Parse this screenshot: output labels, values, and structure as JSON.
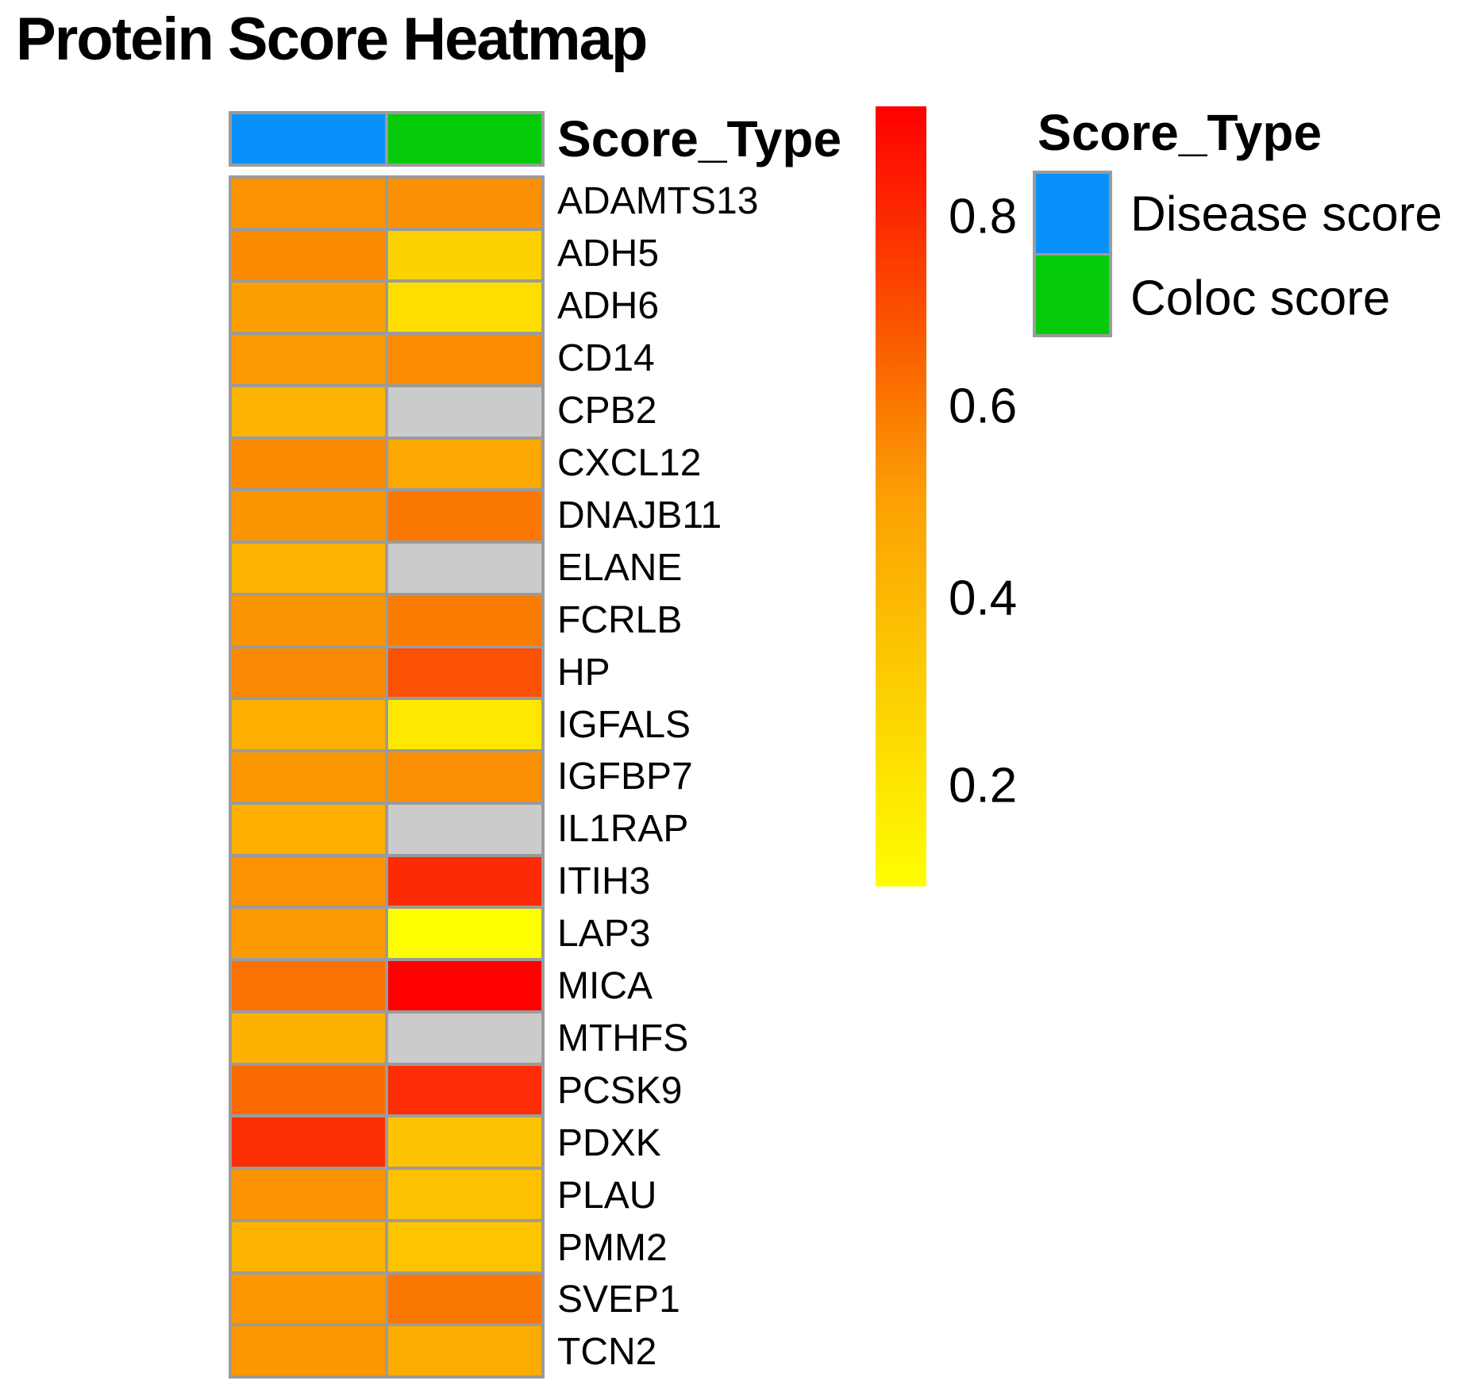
{
  "title": "Protein Score Heatmap",
  "annotation_header": {
    "label": "Score_Type"
  },
  "annotation_colors": {
    "disease": "#0991FB",
    "coloc": "#03CB09"
  },
  "na_color": "#CBCBCB",
  "grid_color": "#9B9B9B",
  "colorbar": {
    "ticks": [
      "0.8",
      "0.6",
      "0.4",
      "0.2"
    ],
    "top_color": "#FE0000",
    "mid_color": "#FBA002",
    "bottom_color": "#FEFE00"
  },
  "legend": {
    "title": "Score_Type",
    "items": [
      {
        "label": "Disease score",
        "color": "#0991FB"
      },
      {
        "label": "Coloc score",
        "color": "#03CB09"
      }
    ]
  },
  "chart_data": {
    "type": "heatmap",
    "title": "Protein Score Heatmap",
    "columns": [
      "Disease score",
      "Coloc score"
    ],
    "rows": [
      "ADAMTS13",
      "ADH5",
      "ADH6",
      "CD14",
      "CPB2",
      "CXCL12",
      "DNAJB11",
      "ELANE",
      "FCRLB",
      "HP",
      "IGFALS",
      "IGFBP7",
      "IL1RAP",
      "ITIH3",
      "LAP3",
      "MICA",
      "MTHFS",
      "PCSK9",
      "PDXK",
      "PLAU",
      "PMM2",
      "SVEP1",
      "TCN2"
    ],
    "series": [
      {
        "name": "Disease score",
        "values": [
          0.55,
          0.57,
          0.52,
          0.53,
          0.44,
          0.58,
          0.54,
          0.44,
          0.55,
          0.58,
          0.45,
          0.54,
          0.46,
          0.55,
          0.53,
          0.63,
          0.45,
          0.65,
          0.8,
          0.55,
          0.44,
          0.54,
          0.54
        ]
      },
      {
        "name": "Coloc score",
        "values": [
          0.56,
          0.3,
          0.24,
          0.57,
          null,
          0.5,
          0.62,
          null,
          0.61,
          0.72,
          0.2,
          0.56,
          null,
          0.81,
          0.09,
          0.92,
          null,
          0.81,
          0.37,
          0.38,
          0.36,
          0.62,
          0.47
        ]
      }
    ],
    "cell_colors": [
      [
        "#FB9204",
        "#FA9004"
      ],
      [
        "#FA8A02",
        "#FDD201"
      ],
      [
        "#FB9F03",
        "#FEDE01"
      ],
      [
        "#FB9A03",
        "#FA8B02"
      ],
      [
        "#FDB301",
        null
      ],
      [
        "#FA8902",
        "#FCA702"
      ],
      [
        "#FB9603",
        "#FA7803"
      ],
      [
        "#FDB401",
        null
      ],
      [
        "#FB9503",
        "#FA7C03"
      ],
      [
        "#FA8802",
        "#FB5103"
      ],
      [
        "#FDB001",
        "#FEE800"
      ],
      [
        "#FB9803",
        "#FA8F03"
      ],
      [
        "#FDAE01",
        null
      ],
      [
        "#FB9204",
        "#FC2B04"
      ],
      [
        "#FB9A03",
        "#FFFE00"
      ],
      [
        "#FA7203",
        "#FE0000"
      ],
      [
        "#FDB101",
        null
      ],
      [
        "#FA6A03",
        "#FC2D04"
      ],
      [
        "#FB2E04",
        "#FDC201"
      ],
      [
        "#FB9304",
        "#FDC101"
      ],
      [
        "#FDB401",
        "#FDC401"
      ],
      [
        "#FB9703",
        "#FA7703"
      ],
      [
        "#FB9803",
        "#FCAD01"
      ]
    ],
    "scale": {
      "min": 0.09,
      "max": 0.92,
      "tick_values": [
        0.8,
        0.6,
        0.4,
        0.2
      ],
      "palette": [
        "yellow",
        "orange",
        "red"
      ],
      "na_color": "#CBCBCB"
    },
    "legend_position": "right",
    "grid": "gray cell borders"
  }
}
